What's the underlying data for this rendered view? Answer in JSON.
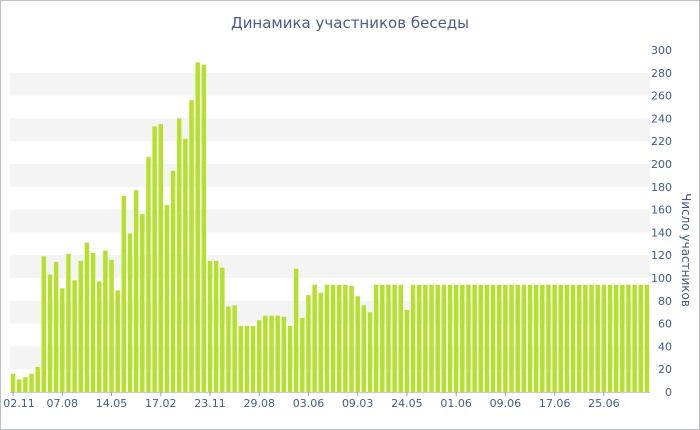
{
  "chart_data": {
    "type": "bar",
    "title": "Динамика участников беседы",
    "xlabel": "",
    "ylabel": "Число участников",
    "ylim": [
      0,
      300
    ],
    "y_ticks": [
      0,
      20,
      40,
      60,
      80,
      100,
      120,
      140,
      160,
      180,
      200,
      220,
      240,
      260,
      280,
      300
    ],
    "x_tick_labels": [
      "02.11",
      "07.08",
      "14.05",
      "17.02",
      "23.11",
      "29.08",
      "03.06",
      "09.03",
      "24.05",
      "01.06",
      "09.06",
      "17.06",
      "25.06"
    ],
    "x_tick_positions": [
      0,
      8,
      16,
      24,
      32,
      40,
      48,
      56,
      64,
      72,
      80,
      88,
      96
    ],
    "grid": "horizontal-bands",
    "legend": "none",
    "bar_color": "#b5e02b",
    "band_color": "#f4f4f4",
    "values": [
      16,
      11,
      13,
      16,
      22,
      119,
      103,
      114,
      91,
      121,
      98,
      115,
      131,
      122,
      97,
      124,
      116,
      89,
      172,
      139,
      177,
      156,
      206,
      233,
      235,
      164,
      194,
      240,
      222,
      256,
      289,
      287,
      115,
      115,
      109,
      75,
      76,
      58,
      58,
      58,
      63,
      67,
      67,
      67,
      66,
      58,
      108,
      65,
      85,
      94,
      87,
      94,
      94,
      94,
      94,
      93,
      84,
      76,
      70,
      94,
      94,
      94,
      94,
      94,
      72,
      94,
      94,
      94,
      94,
      94,
      94,
      94,
      94,
      94,
      94,
      94,
      94,
      94,
      94,
      94,
      94,
      94,
      94,
      94,
      94,
      94,
      94,
      94,
      94,
      94,
      94,
      94,
      94,
      94,
      94,
      94,
      94,
      94,
      94,
      94,
      94,
      94,
      94,
      94
    ]
  }
}
